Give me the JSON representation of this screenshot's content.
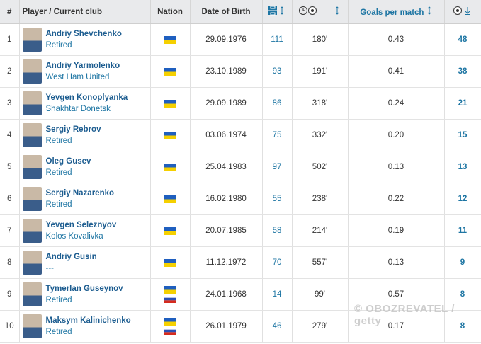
{
  "header": {
    "rank": "#",
    "player": "Player / Current club",
    "nation": "Nation",
    "dob": "Date of Birth",
    "goals_per_match": "Goals per match"
  },
  "rows": [
    {
      "rank": "1",
      "name": "Andriy Shevchenko",
      "club": "Retired",
      "dob": "29.09.1976",
      "apps": "111",
      "minutes": "180'",
      "gpm": "0.43",
      "goals": "48"
    },
    {
      "rank": "2",
      "name": "Andriy Yarmolenko",
      "club": "West Ham United",
      "dob": "23.10.1989",
      "apps": "93",
      "minutes": "191'",
      "gpm": "0.41",
      "goals": "38"
    },
    {
      "rank": "3",
      "name": "Yevgen Konoplyanka",
      "club": "Shakhtar Donetsk",
      "dob": "29.09.1989",
      "apps": "86",
      "minutes": "318'",
      "gpm": "0.24",
      "goals": "21"
    },
    {
      "rank": "4",
      "name": "Sergiy Rebrov",
      "club": "Retired",
      "dob": "03.06.1974",
      "apps": "75",
      "minutes": "332'",
      "gpm": "0.20",
      "goals": "15"
    },
    {
      "rank": "5",
      "name": "Oleg Gusev",
      "club": "Retired",
      "dob": "25.04.1983",
      "apps": "97",
      "minutes": "502'",
      "gpm": "0.13",
      "goals": "13"
    },
    {
      "rank": "6",
      "name": "Sergiy Nazarenko",
      "club": "Retired",
      "dob": "16.02.1980",
      "apps": "55",
      "minutes": "238'",
      "gpm": "0.22",
      "goals": "12"
    },
    {
      "rank": "7",
      "name": "Yevgen Seleznyov",
      "club": "Kolos Kovalivka",
      "dob": "20.07.1985",
      "apps": "58",
      "minutes": "214'",
      "gpm": "0.19",
      "goals": "11"
    },
    {
      "rank": "8",
      "name": "Andriy Gusin",
      "club": "---",
      "dob": "11.12.1972",
      "apps": "70",
      "minutes": "557'",
      "gpm": "0.13",
      "goals": "9"
    },
    {
      "rank": "9",
      "name": "Tymerlan Guseynov",
      "club": "Retired",
      "dob": "24.01.1968",
      "apps": "14",
      "minutes": "99'",
      "gpm": "0.57",
      "goals": "8"
    },
    {
      "rank": "10",
      "name": "Maksym Kalinichenko",
      "club": "Retired",
      "dob": "26.01.1979",
      "apps": "46",
      "minutes": "279'",
      "gpm": "0.17",
      "goals": "8"
    }
  ],
  "watermark": "OBOZREVATEL / getty"
}
